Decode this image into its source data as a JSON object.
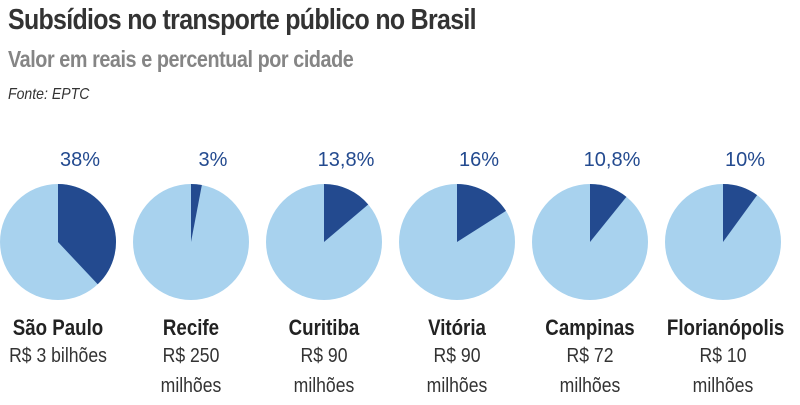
{
  "header": {
    "title": "Subsídios no transporte público no Brasil",
    "subtitle": "Valor em reais e percentual por cidade",
    "source": "Fonte: EPTC"
  },
  "colors": {
    "highlight": "#234a8f",
    "rest": "#a8d2ee",
    "label": "#234a8f"
  },
  "chart_data": {
    "type": "pie",
    "title": "Subsídios no transporte público no Brasil",
    "subtitle": "Valor em reais e percentual por cidade",
    "pies": [
      {
        "city": "São Paulo",
        "percent": 38,
        "percent_label": "38%",
        "value_line1": "R$ 3 bilhões",
        "value_line2": ""
      },
      {
        "city": "Recife",
        "percent": 3,
        "percent_label": "3%",
        "value_line1": "R$ 250",
        "value_line2": "milhões"
      },
      {
        "city": "Curitiba",
        "percent": 13.8,
        "percent_label": "13,8%",
        "value_line1": "R$ 90",
        "value_line2": "milhões"
      },
      {
        "city": "Vitória",
        "percent": 16,
        "percent_label": "16%",
        "value_line1": "R$ 90",
        "value_line2": "milhões"
      },
      {
        "city": "Campinas",
        "percent": 10.8,
        "percent_label": "10,8%",
        "value_line1": "R$ 72",
        "value_line2": "milhões"
      },
      {
        "city": "Florianópolis",
        "percent": 10,
        "percent_label": "10%",
        "value_line1": "R$ 10",
        "value_line2": "milhões"
      }
    ]
  }
}
